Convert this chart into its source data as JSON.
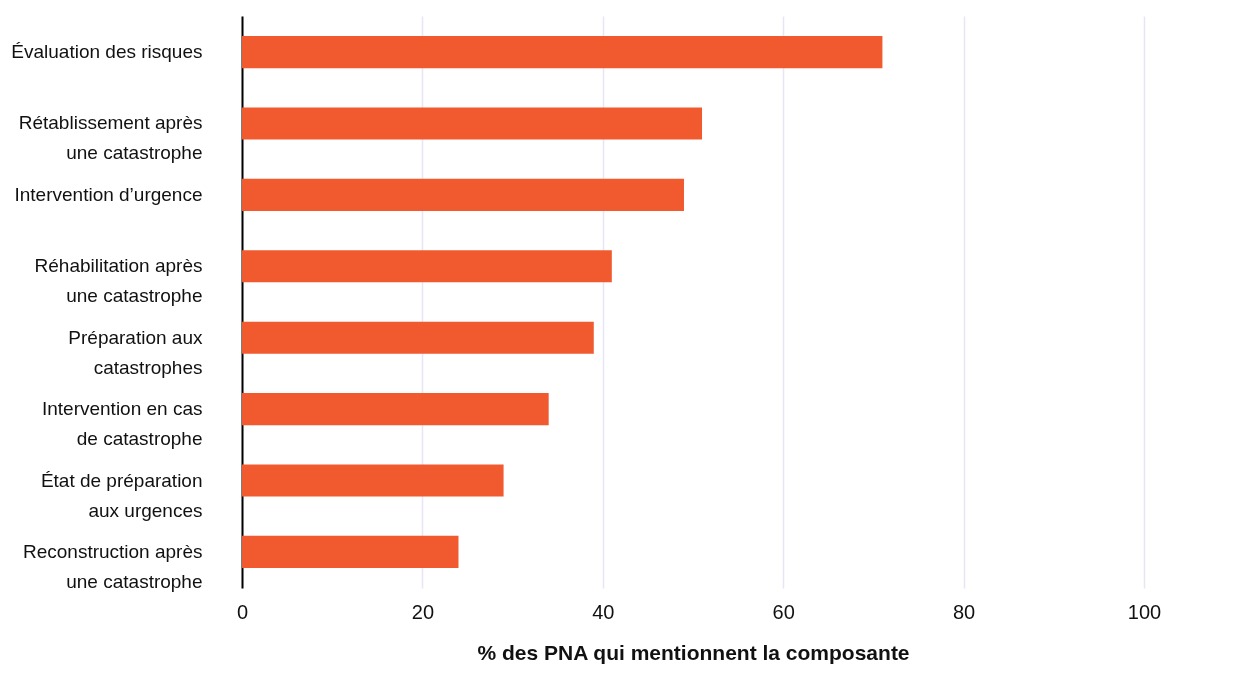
{
  "chart_data": {
    "type": "bar",
    "orientation": "horizontal",
    "xlabel": "% des PNA qui mentionnent la composante",
    "categories": [
      "Évaluation des risques",
      "Rétablissement après une catastrophe",
      "Intervention d’urgence",
      "Réhabilitation après une catastrophe",
      "Préparation aux catastrophes",
      "Intervention en cas de catastrophe",
      "État de préparation aux urgences",
      "Reconstruction après une catastrophe"
    ],
    "values": [
      71,
      51,
      49,
      41,
      39,
      34,
      29,
      24
    ],
    "color": "#f15a2f",
    "xlim": [
      0,
      100
    ],
    "xticks": [
      0,
      20,
      40,
      60,
      80,
      100
    ],
    "grid": "x"
  }
}
